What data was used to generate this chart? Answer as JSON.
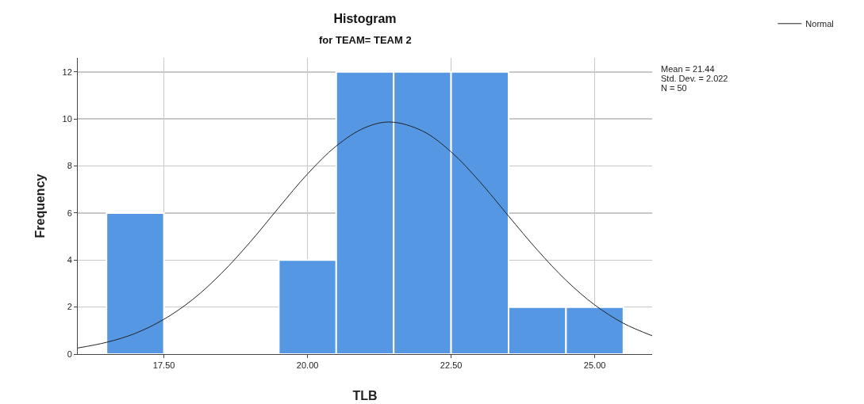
{
  "chart_data": {
    "type": "histogram",
    "title": "Histogram",
    "subtitle": "for TEAM= TEAM 2",
    "xlabel": "TLB",
    "ylabel": "Frequency",
    "bins": [
      16.5,
      17.5,
      18.5,
      19.5,
      20.5,
      21.5,
      22.5,
      23.5,
      24.5,
      25.5
    ],
    "values": [
      6,
      0,
      0,
      4,
      12,
      12,
      12,
      2,
      2
    ],
    "color": "#5597e3",
    "series": [
      {
        "name": "Normal",
        "type": "line",
        "color": "#222222",
        "x": [
          16,
          16.5,
          17,
          17.5,
          18,
          18.5,
          19,
          19.5,
          20,
          20.5,
          21,
          21.44,
          22,
          22.5,
          23,
          23.5,
          24,
          24.5,
          25,
          25.5,
          26
        ],
        "values": [
          0.26,
          0.5,
          0.88,
          1.48,
          2.32,
          3.43,
          4.76,
          6.23,
          7.66,
          8.85,
          9.63,
          9.87,
          9.49,
          8.6,
          7.33,
          5.87,
          4.43,
          3.14,
          2.09,
          1.31,
          0.78
        ]
      }
    ],
    "xlim": [
      16,
      26
    ],
    "xticks": [
      {
        "value": 17.5,
        "label": "17.50"
      },
      {
        "value": 20,
        "label": "20.00"
      },
      {
        "value": 22.5,
        "label": "22.50"
      },
      {
        "value": 25,
        "label": "25.00"
      }
    ],
    "ylim": [
      0,
      12.6
    ],
    "yticks": [
      0,
      2,
      4,
      6,
      8,
      10,
      12
    ],
    "grid": true,
    "legend": "top right",
    "annotations": [
      "Mean = 21.44",
      "Std. Dev. = 2.022",
      "N = 50"
    ]
  }
}
